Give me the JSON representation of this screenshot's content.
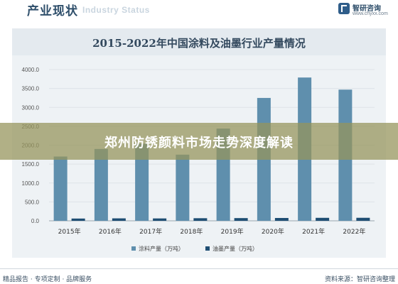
{
  "header": {
    "title": "产业现状",
    "ghost_text": "Industry Status",
    "brand_name": "智研咨询",
    "brand_url": "www.chyxx.com"
  },
  "banner": {
    "text": "郑州防锈颜料市场走势深度解读"
  },
  "footer": {
    "left": "精品报告 · 专项定制 · 品牌服务",
    "right": "资料来源：智研咨询整理"
  },
  "colors": {
    "series_1": "#5f8fad",
    "series_2": "#1f4e73",
    "banner": "#96945c"
  },
  "chart_data": {
    "type": "bar",
    "title": "2015-2022年中国涂料及油墨行业产量情况",
    "categories": [
      "2015年",
      "2016年",
      "2017年",
      "2018年",
      "2019年",
      "2020年",
      "2021年",
      "2022年"
    ],
    "series": [
      {
        "name": "涂料产量（万吨）",
        "values": [
          1700,
          1900,
          2040,
          1750,
          2440,
          3250,
          3790,
          3470
        ]
      },
      {
        "name": "油墨产量（万吨）",
        "values": [
          60,
          65,
          63,
          69,
          72,
          75,
          79,
          80
        ]
      }
    ],
    "yticks": [
      "0.0",
      "500.0",
      "1000.0",
      "1500.0",
      "2000.0",
      "2500.0",
      "3000.0",
      "3500.0",
      "4000.0"
    ],
    "ylim": [
      0,
      4000
    ],
    "legend_position": "bottom"
  }
}
